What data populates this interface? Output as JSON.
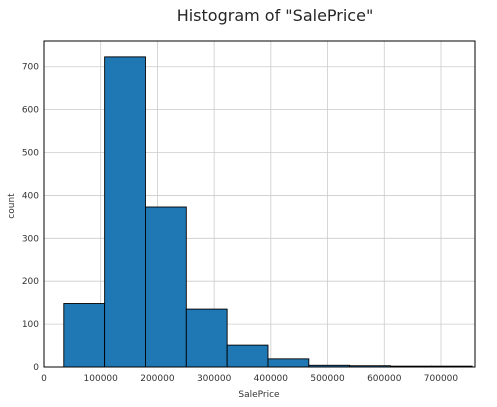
{
  "chart_data": {
    "type": "bar",
    "title": "Histogram of \"SalePrice\"",
    "xlabel": "SalePrice",
    "ylabel": "count",
    "xlim": [
      0,
      760000
    ],
    "ylim": [
      0,
      760
    ],
    "xticks": [
      0,
      100000,
      200000,
      300000,
      400000,
      500000,
      600000,
      700000
    ],
    "yticks": [
      0,
      100,
      200,
      300,
      400,
      500,
      600,
      700
    ],
    "grid": true,
    "bin_edges": [
      34900,
      106910,
      178920,
      250930,
      322940,
      394950,
      466960,
      538970,
      610980,
      682990,
      755000
    ],
    "values": [
      148,
      723,
      373,
      135,
      51,
      19,
      4,
      3,
      2,
      2
    ],
    "colors": {
      "bar_fill": "#1f77b4",
      "bar_edge": "#000000",
      "grid": "#cccccc",
      "axes": "#000000",
      "text": "#333333",
      "title": "#262626"
    }
  }
}
